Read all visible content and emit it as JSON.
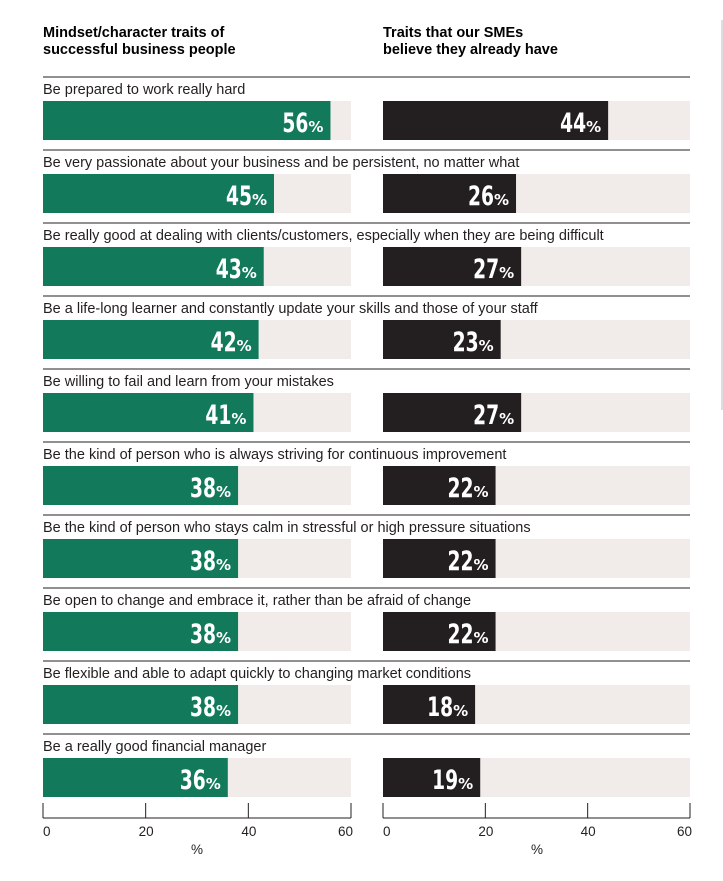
{
  "chart_data": {
    "type": "bar",
    "orientation": "horizontal",
    "panel_titles": [
      [
        "Mindset/character traits of",
        "successful business people"
      ],
      [
        "Traits that our SMEs",
        "believe they already have"
      ]
    ],
    "categories": [
      "Be prepared to work really hard",
      "Be very passionate about your business and be persistent, no matter what",
      "Be really good at dealing with clients/customers, especially when they are being difficult",
      "Be a life-long learner and constantly update your skills and those of your staff",
      "Be willing to fail and learn from your mistakes",
      "Be the kind of person who is always striving for continuous improvement",
      "Be the kind of person who stays calm in stressful or high pressure situations",
      "Be open to change and embrace it, rather than be afraid of change",
      "Be flexible and able to adapt quickly to changing market conditions",
      "Be a really good financial manager"
    ],
    "series": [
      {
        "values": [
          56,
          45,
          43,
          42,
          41,
          38,
          38,
          38,
          38,
          36
        ]
      },
      {
        "values": [
          44,
          26,
          27,
          23,
          27,
          22,
          22,
          22,
          18,
          19
        ]
      }
    ],
    "value_suffix": "%",
    "xlabel": "%",
    "xlim": [
      0,
      60
    ],
    "xticks": [
      "0",
      "20",
      "40",
      "60"
    ],
    "colors": {
      "left_bar": "#127a5a",
      "right_bar": "#231f20",
      "track": "#f1ecea",
      "rule": "#231f20"
    }
  }
}
